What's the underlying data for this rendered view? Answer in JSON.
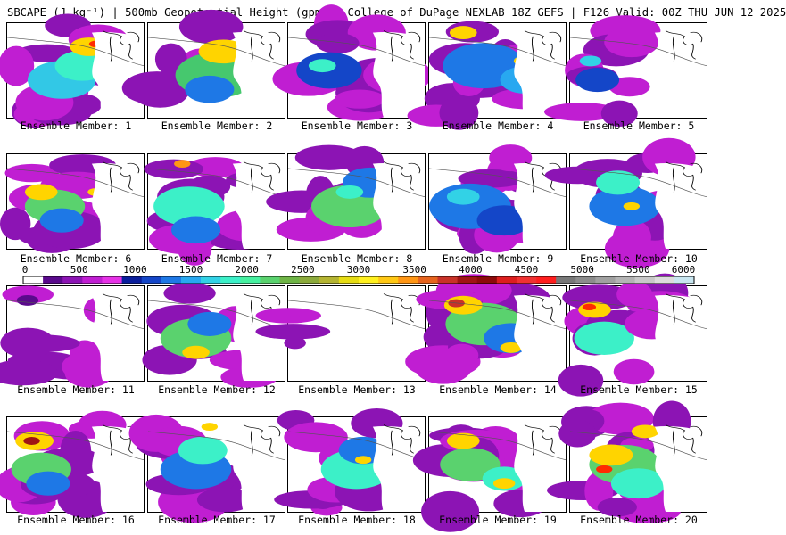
{
  "title": "SBCAPE (J kg⁻¹) | 500mb Geopotential Height (gpm) | College of DuPage NEXLAB 18Z GEFS | F126 Valid: 00Z THU JUN 12 2025",
  "colorbar": {
    "tick_labels": [
      "0",
      "500",
      "1000",
      "1500",
      "2000",
      "2500",
      "3000",
      "3500",
      "4000",
      "4500",
      "5000",
      "5500",
      "6000"
    ],
    "colors": [
      "#ffffff",
      "#5a0a8c",
      "#8c14b4",
      "#c01ed2",
      "#e632e6",
      "#0a1e9c",
      "#1446c8",
      "#1e78e6",
      "#28a8f0",
      "#32d2e6",
      "#3cf0c8",
      "#46f0a0",
      "#5ad26e",
      "#6eb446",
      "#8caa3c",
      "#b4b432",
      "#e6dc14",
      "#fff01e",
      "#ffc814",
      "#ff9614",
      "#e6641e",
      "#c83228",
      "#a01414",
      "#8c0a0a",
      "#dc1e1e",
      "#f03232",
      "#ff1e1e",
      "#787878",
      "#8c8c8c",
      "#a0a0a0",
      "#b4b4b4",
      "#c8c8c8",
      "#dcdcdc",
      "#c8e6f0"
    ]
  },
  "panels": [
    {
      "label": "Ensemble Member: 1"
    },
    {
      "label": "Ensemble Member: 2"
    },
    {
      "label": "Ensemble Member: 3"
    },
    {
      "label": "Ensemble Member: 4"
    },
    {
      "label": "Ensemble Member: 5"
    },
    {
      "label": "Ensemble Member: 6"
    },
    {
      "label": "Ensemble Member: 7"
    },
    {
      "label": "Ensemble Member: 8"
    },
    {
      "label": "Ensemble Member: 9"
    },
    {
      "label": "Ensemble Member: 10"
    },
    {
      "label": "Ensemble Member: 11"
    },
    {
      "label": "Ensemble Member: 12"
    },
    {
      "label": "Ensemble Member: 13"
    },
    {
      "label": "Ensemble Member: 14"
    },
    {
      "label": "Ensemble Member: 15"
    },
    {
      "label": "Ensemble Member: 16"
    },
    {
      "label": "Ensemble Member: 17"
    },
    {
      "label": "Ensemble Member: 18"
    },
    {
      "label": "Ensemble Member: 19"
    },
    {
      "label": "Ensemble Member: 20"
    }
  ]
}
